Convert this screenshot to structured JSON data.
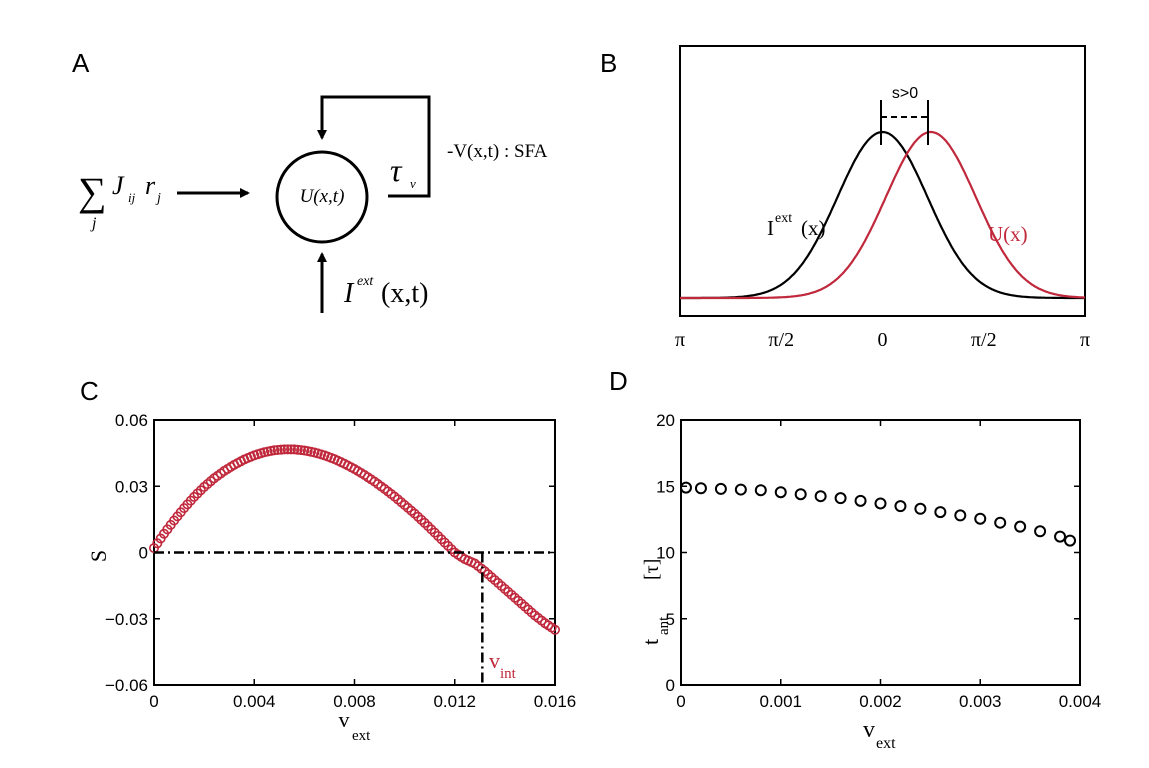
{
  "panels": {
    "A": {
      "letter": "A",
      "sum_symbol": "∑",
      "sum_index": "j",
      "sum_term_J": "J",
      "sum_term_ij": "ij",
      "sum_term_r": "r",
      "sum_term_j": "j",
      "node_label": "U(x,t)",
      "tau": "τ",
      "tau_sub": "v",
      "sfa_label": "-V(x,t) : SFA",
      "input_I": "I",
      "input_ext": "ext",
      "input_args": "(x,t)"
    },
    "B": {
      "letter": "B",
      "shift_label": "s>0",
      "curve_label_I": "I",
      "curve_label_I_sup": "ext",
      "curve_label_I_args": "(x)",
      "curve_label_U": "U(x)",
      "ticks": [
        "π",
        "π/2",
        "0",
        "π/2",
        "π"
      ]
    },
    "C": {
      "letter": "C"
    },
    "D": {
      "letter": "D"
    }
  },
  "colors": {
    "red": "#c0283c",
    "black": "#000000"
  },
  "chart_data": [
    {
      "panel": "B",
      "type": "line",
      "xlim": [
        -3.1416,
        3.1416
      ],
      "x_tick_values": [
        -3.1416,
        -1.5708,
        0,
        1.5708,
        3.1416
      ],
      "x_tick_labels": [
        "π",
        "π/2",
        "0",
        "π/2",
        "π"
      ],
      "series": [
        {
          "name": "I^ext(x)",
          "color": "#000000",
          "shape": "gaussian",
          "peak_x": 0,
          "sigma": 0.7
        },
        {
          "name": "U(x)",
          "color": "#c0283c",
          "shape": "gaussian",
          "peak_x": 0.75,
          "sigma": 0.7
        }
      ],
      "annotation": "s>0"
    },
    {
      "panel": "C",
      "type": "scatter",
      "xlabel": "v",
      "xlabel_sub": "ext",
      "ylabel": "S",
      "xlim": [
        0,
        0.016
      ],
      "ylim": [
        -0.06,
        0.06
      ],
      "x_ticks": [
        "0",
        "0.004",
        "0.008",
        "0.012",
        "0.016"
      ],
      "y_ticks": [
        "0.06",
        "0.03",
        "0",
        "−0.03",
        "−0.06"
      ],
      "y_tick_values": [
        0.06,
        0.03,
        0,
        -0.03,
        -0.06
      ],
      "x_tick_values": [
        0,
        0.004,
        0.008,
        0.012,
        0.016
      ],
      "marker_color": "#c0283c",
      "x": [
        0,
        0.0004,
        0.0008,
        0.0012,
        0.0016,
        0.002,
        0.0024,
        0.0028,
        0.0032,
        0.0036,
        0.004,
        0.0044,
        0.0048,
        0.0052,
        0.0056,
        0.006,
        0.0064,
        0.0068,
        0.0072,
        0.0076,
        0.008,
        0.0084,
        0.0088,
        0.0092,
        0.0096,
        0.01,
        0.0104,
        0.0108,
        0.0112,
        0.0116,
        0.012,
        0.0124,
        0.0128,
        0.0132,
        0.0136,
        0.014,
        0.0144,
        0.0148,
        0.0152,
        0.0156,
        0.016
      ],
      "y": [
        0.002,
        0.0085,
        0.0145,
        0.0201,
        0.0252,
        0.0297,
        0.0336,
        0.0369,
        0.0397,
        0.0421,
        0.044,
        0.0454,
        0.0463,
        0.0467,
        0.0467,
        0.0462,
        0.0453,
        0.044,
        0.0423,
        0.0402,
        0.0378,
        0.0351,
        0.0321,
        0.0288,
        0.0253,
        0.0215,
        0.0176,
        0.0134,
        0.009,
        0.0045,
        0.0,
        -0.003,
        -0.005,
        -0.0085,
        -0.0125,
        -0.0165,
        -0.0205,
        -0.0245,
        -0.0285,
        -0.032,
        -0.035
      ],
      "reference_lines": {
        "y": 0,
        "x": 0.0131,
        "x_label": "v",
        "x_label_sub": "int"
      }
    },
    {
      "panel": "D",
      "type": "scatter",
      "xlabel": "v",
      "xlabel_sub": "ext",
      "ylabel": "t",
      "ylabel_sub": "ant",
      "ylabel_unit": "[τ]",
      "xlim": [
        0,
        0.004
      ],
      "ylim": [
        0,
        20
      ],
      "x_ticks": [
        "0",
        "0.001",
        "0.002",
        "0.003",
        "0.004"
      ],
      "x_tick_values": [
        0,
        0.001,
        0.002,
        0.003,
        0.004
      ],
      "y_ticks": [
        "20",
        "15",
        "10",
        "5",
        "0"
      ],
      "y_tick_values": [
        20,
        15,
        10,
        5,
        0
      ],
      "marker_color": "#000000",
      "x": [
        5e-05,
        0.0002,
        0.0004,
        0.0006,
        0.0008,
        0.001,
        0.0012,
        0.0014,
        0.0016,
        0.0018,
        0.002,
        0.0022,
        0.0024,
        0.0026,
        0.0028,
        0.003,
        0.0032,
        0.0034,
        0.0036,
        0.0038,
        0.0039
      ],
      "y": [
        14.9,
        14.85,
        14.8,
        14.75,
        14.7,
        14.55,
        14.4,
        14.25,
        14.1,
        13.9,
        13.7,
        13.5,
        13.3,
        13.05,
        12.8,
        12.55,
        12.25,
        11.95,
        11.6,
        11.2,
        10.9
      ]
    }
  ]
}
